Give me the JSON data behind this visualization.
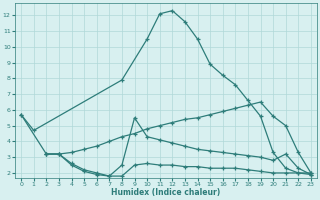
{
  "line1_x": [
    0,
    1,
    8,
    10,
    11,
    12,
    13,
    14,
    15,
    16,
    17,
    18,
    19,
    20,
    21,
    22,
    23
  ],
  "line1_y": [
    5.7,
    4.7,
    7.9,
    10.5,
    12.1,
    12.3,
    11.6,
    10.5,
    8.9,
    8.2,
    7.6,
    6.6,
    5.6,
    3.3,
    2.3,
    2.0,
    2.0
  ],
  "line2_x": [
    0,
    2,
    3,
    4,
    5,
    6,
    7,
    8,
    9,
    10,
    11,
    12,
    13,
    14,
    15,
    16,
    17,
    18,
    19,
    20,
    21,
    22,
    23
  ],
  "line2_y": [
    5.7,
    3.2,
    3.2,
    3.3,
    3.5,
    3.7,
    4.0,
    4.3,
    4.5,
    4.8,
    5.0,
    5.2,
    5.4,
    5.5,
    5.7,
    5.9,
    6.1,
    6.3,
    6.5,
    5.6,
    5.0,
    3.3,
    2.0
  ],
  "line3_x": [
    2,
    3,
    4,
    5,
    6,
    7,
    8,
    9,
    10,
    11,
    12,
    13,
    14,
    15,
    16,
    17,
    18,
    19,
    20,
    21,
    22,
    23
  ],
  "line3_y": [
    3.2,
    3.2,
    2.5,
    2.1,
    1.9,
    1.8,
    2.5,
    5.5,
    4.3,
    4.1,
    3.9,
    3.7,
    3.5,
    3.4,
    3.3,
    3.2,
    3.1,
    3.0,
    2.8,
    3.2,
    2.3,
    1.9
  ],
  "line4_x": [
    2,
    3,
    4,
    5,
    6,
    7,
    8,
    9,
    10,
    11,
    12,
    13,
    14,
    15,
    16,
    17,
    18,
    19,
    20,
    21,
    22,
    23
  ],
  "line4_y": [
    3.2,
    3.2,
    2.6,
    2.2,
    2.0,
    1.8,
    1.8,
    2.5,
    2.6,
    2.5,
    2.5,
    2.4,
    2.4,
    2.3,
    2.3,
    2.3,
    2.2,
    2.1,
    2.0,
    2.0,
    2.0,
    1.9
  ],
  "color": "#2e7d7a",
  "bg_color": "#d8f0f0",
  "grid_color": "#b0d8d8",
  "xlabel": "Humidex (Indice chaleur)",
  "xlim": [
    -0.5,
    23.5
  ],
  "ylim": [
    1.7,
    12.8
  ],
  "yticks": [
    2,
    3,
    4,
    5,
    6,
    7,
    8,
    9,
    10,
    11,
    12
  ],
  "xticks": [
    0,
    1,
    2,
    3,
    4,
    5,
    6,
    7,
    8,
    9,
    10,
    11,
    12,
    13,
    14,
    15,
    16,
    17,
    18,
    19,
    20,
    21,
    22,
    23
  ]
}
